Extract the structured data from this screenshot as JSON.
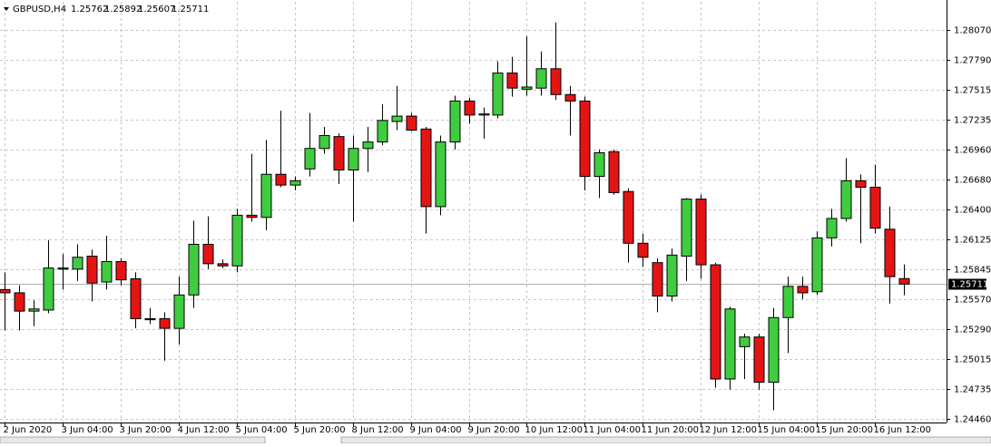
{
  "chart_data": {
    "type": "candlestick",
    "title": "GBPUSD,H4",
    "categories": [
      "2 Jun 2020",
      null,
      null,
      null,
      "3 Jun 04:00",
      null,
      null,
      null,
      "3 Jun 20:00",
      null,
      null,
      null,
      "4 Jun 12:00",
      null,
      null,
      null,
      "5 Jun 04:00",
      null,
      null,
      null,
      "5 Jun 20:00",
      null,
      null,
      null,
      "8 Jun 12:00",
      null,
      null,
      null,
      "9 Jun 04:00",
      null,
      null,
      null,
      "9 Jun 20:00",
      null,
      null,
      null,
      "10 Jun 12:00",
      null,
      null,
      null,
      "11 Jun 04:00",
      null,
      null,
      null,
      "11 Jun 20:00",
      null,
      null,
      null,
      "12 Jun 12:00",
      null,
      null,
      null,
      "15 Jun 04:00",
      null,
      null,
      null,
      "15 Jun 20:00",
      null,
      null,
      null,
      "16 Jun 12:00",
      null,
      null
    ],
    "open": [
      1.2566,
      1.2563,
      1.2546,
      1.2547,
      1.2585,
      1.2585,
      1.2597,
      1.2573,
      1.2592,
      1.2576,
      1.2539,
      1.2539,
      1.253,
      1.2561,
      1.2608,
      1.259,
      1.2588,
      1.2635,
      1.2633,
      1.2673,
      1.2663,
      1.2678,
      1.2697,
      1.2708,
      1.2677,
      1.2697,
      1.2703,
      1.2722,
      1.2727,
      1.2715,
      1.2643,
      1.2703,
      1.2741,
      1.2728,
      1.2728,
      1.2767,
      1.2752,
      1.2753,
      1.2771,
      1.2747,
      1.2741,
      1.2671,
      1.2694,
      1.2657,
      1.2609,
      1.2591,
      1.256,
      1.2597,
      1.265,
      1.2589,
      1.2483,
      1.2513,
      1.2522,
      1.248,
      1.254,
      1.2569,
      1.2564,
      1.2614,
      1.2632,
      1.2667,
      1.2661,
      1.2622,
      1.25762
    ],
    "high": [
      1.2582,
      1.257,
      1.2556,
      1.2612,
      1.2599,
      1.2608,
      1.2603,
      1.2616,
      1.2595,
      1.2582,
      1.2549,
      1.2545,
      1.2578,
      1.263,
      1.2634,
      1.2594,
      1.2641,
      1.2692,
      1.2705,
      1.2732,
      1.2671,
      1.273,
      1.2717,
      1.2711,
      1.2709,
      1.2717,
      1.2738,
      1.2755,
      1.273,
      1.2717,
      1.2709,
      1.2746,
      1.2744,
      1.2735,
      1.2778,
      1.2782,
      1.2801,
      1.2787,
      1.2814,
      1.2755,
      1.2745,
      1.2696,
      1.2696,
      1.266,
      1.2618,
      1.2595,
      1.2604,
      1.2651,
      1.2654,
      1.2591,
      1.255,
      1.2525,
      1.2525,
      1.2549,
      1.2578,
      1.2578,
      1.262,
      1.2641,
      1.2688,
      1.2673,
      1.2682,
      1.2643,
      1.25892
    ],
    "low": [
      1.2528,
      1.2528,
      1.2532,
      1.2544,
      1.2566,
      1.2574,
      1.2555,
      1.2566,
      1.257,
      1.253,
      1.2534,
      1.25,
      1.2515,
      1.2549,
      1.2585,
      1.2586,
      1.2582,
      1.2629,
      1.2621,
      1.2661,
      1.2658,
      1.2671,
      1.2692,
      1.2664,
      1.2629,
      1.2675,
      1.27,
      1.2714,
      1.2713,
      1.2618,
      1.2635,
      1.2696,
      1.272,
      1.2706,
      1.2725,
      1.2745,
      1.2746,
      1.2746,
      1.2742,
      1.2709,
      1.2658,
      1.2651,
      1.2654,
      1.2591,
      1.2587,
      1.2545,
      1.2555,
      1.2574,
      1.2576,
      1.2475,
      1.2473,
      1.2483,
      1.2473,
      1.2454,
      1.2507,
      1.2557,
      1.2561,
      1.2606,
      1.2629,
      1.2609,
      1.2618,
      1.2553,
      1.25607
    ],
    "close": [
      1.2563,
      1.2546,
      1.2548,
      1.2586,
      1.2586,
      1.2596,
      1.2572,
      1.2592,
      1.2575,
      1.2539,
      1.2538,
      1.253,
      1.2561,
      1.2608,
      1.259,
      1.2588,
      1.2635,
      1.2633,
      1.2673,
      1.2663,
      1.2667,
      1.2697,
      1.2709,
      1.2677,
      1.2697,
      1.2703,
      1.2723,
      1.2727,
      1.2714,
      1.2643,
      1.2703,
      1.2741,
      1.2728,
      1.2729,
      1.2767,
      1.2753,
      1.2754,
      1.2771,
      1.2747,
      1.2741,
      1.2671,
      1.2693,
      1.2656,
      1.2609,
      1.2596,
      1.256,
      1.2598,
      1.265,
      1.2589,
      1.2483,
      1.2548,
      1.2522,
      1.248,
      1.254,
      1.2569,
      1.2563,
      1.2614,
      1.2632,
      1.2667,
      1.2661,
      1.2623,
      1.2578,
      1.25711
    ],
    "up_color": "#3fcc3f",
    "down_color": "#e41414",
    "ylim": [
      1.24426,
      1.28331
    ],
    "yticks": [
      {
        "value": 1.2807,
        "label": "1.28070"
      },
      {
        "value": 1.2779,
        "label": "1.27790"
      },
      1.27515,
      1.27235,
      {
        "value": 1.2696,
        "label": "1.26960"
      },
      {
        "value": 1.2668,
        "label": "1.26680"
      },
      {
        "value": 1.264,
        "label": "1.26400"
      },
      1.26125,
      1.25845,
      {
        "value": 1.2557,
        "label": "1.25570"
      },
      {
        "value": 1.2529,
        "label": "1.25290"
      },
      1.25015,
      1.24735,
      {
        "value": 1.2446,
        "label": "1.24460"
      }
    ],
    "grid": true
  }
}
